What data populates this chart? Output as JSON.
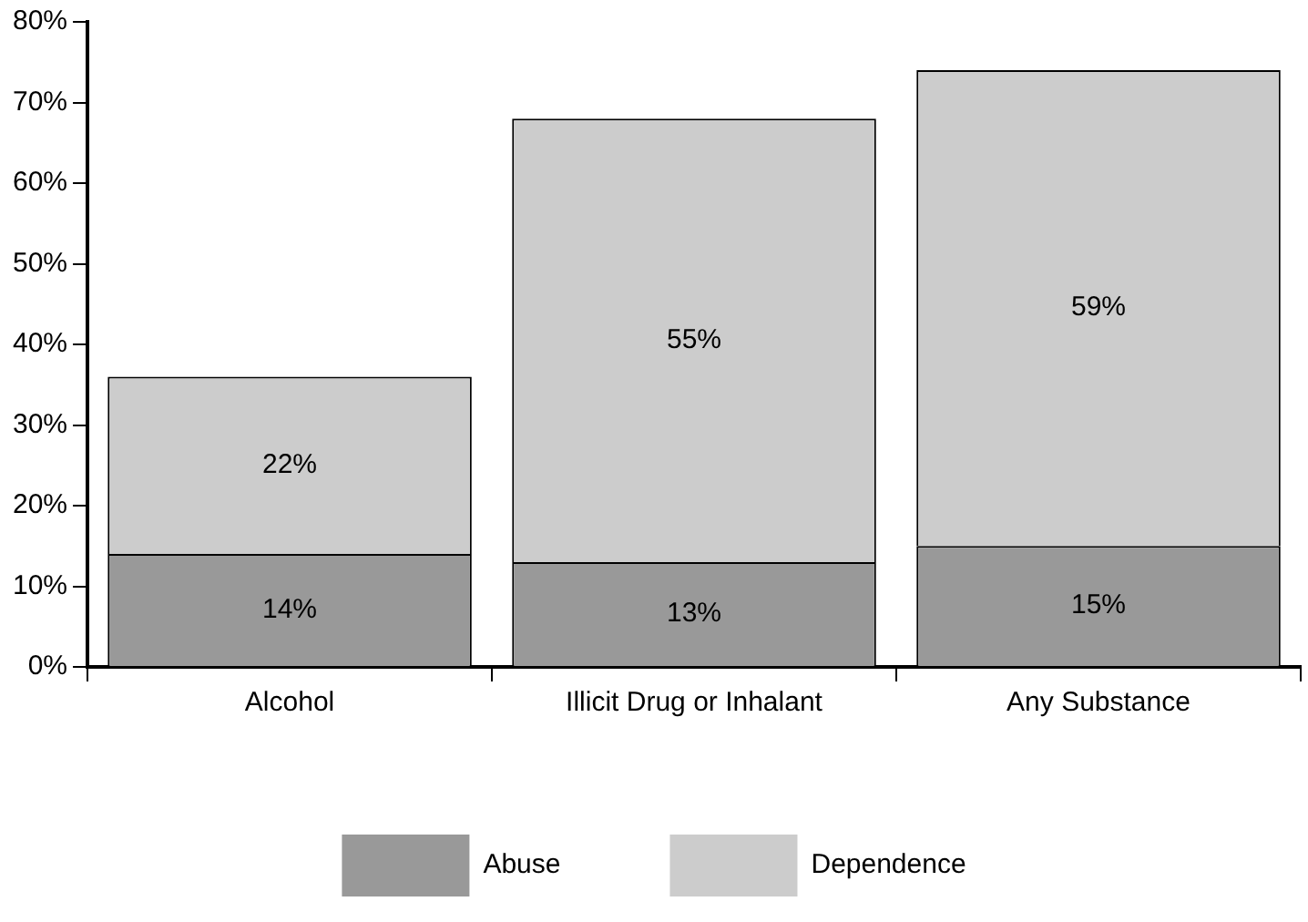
{
  "chart_data": {
    "type": "bar",
    "stacked": true,
    "categories": [
      "Alcohol",
      "Illicit Drug or Inhalant",
      "Any Substance"
    ],
    "series": [
      {
        "name": "Abuse",
        "color": "#999999",
        "values": [
          14,
          13,
          15
        ],
        "value_labels": [
          "14%",
          "13%",
          "15%"
        ]
      },
      {
        "name": "Dependence",
        "color": "#cccccc",
        "values": [
          22,
          55,
          59
        ],
        "value_labels": [
          "22%",
          "55%",
          "59%"
        ]
      }
    ],
    "ylim": [
      0,
      80
    ],
    "yticks": [
      {
        "value": 0,
        "label": "0%"
      },
      {
        "value": 10,
        "label": "10%"
      },
      {
        "value": 20,
        "label": "20%"
      },
      {
        "value": 30,
        "label": "30%"
      },
      {
        "value": 40,
        "label": "40%"
      },
      {
        "value": 50,
        "label": "50%"
      },
      {
        "value": 60,
        "label": "60%"
      },
      {
        "value": 70,
        "label": "70%"
      },
      {
        "value": 80,
        "label": "80%"
      }
    ],
    "grid": false,
    "legend": "bottom"
  }
}
